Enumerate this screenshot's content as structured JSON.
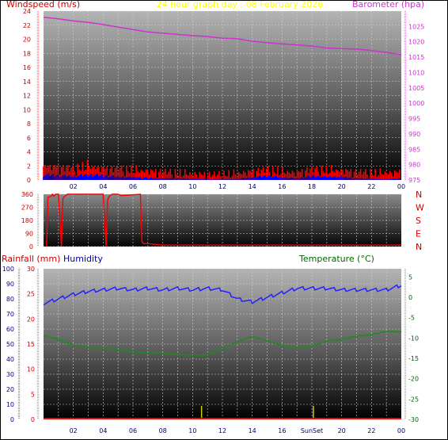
{
  "colors": {
    "wind": "#ff0000",
    "gust": "#0000ff",
    "baro": "#cc33cc",
    "title": "#ffff00",
    "dir": "#cc0000",
    "rain": "#cc0000",
    "humidity": "#000099",
    "temperature": "#006600",
    "sun": "#003399",
    "hum_line": "#2222ff",
    "temp_line": "#228822",
    "rain_line": "#ff0000",
    "sun_bar": "#cccc00"
  },
  "chart_data": [
    {
      "type": "line",
      "title": "24 hour graph day : 08 February 2026",
      "left_label": "Windspeed (m/s)",
      "right_label": "Barometer (hpa)",
      "ylim_left": [
        0,
        24
      ],
      "left_ticks": [
        "0",
        "2",
        "4",
        "6",
        "8",
        "10",
        "12",
        "14",
        "16",
        "18",
        "20",
        "22",
        "24"
      ],
      "ylim_right": [
        975,
        1030
      ],
      "right_ticks": [
        "975",
        "980",
        "985",
        "990",
        "995",
        "1000",
        "1005",
        "1010",
        "1015",
        "1020",
        "1025"
      ],
      "xlim": [
        0,
        24
      ],
      "x_ticks": [
        "02",
        "04",
        "06",
        "08",
        "10",
        "12",
        "14",
        "16",
        "18",
        "20",
        "22",
        "00"
      ],
      "series": [
        {
          "key": "barometer",
          "x": [
            0,
            1,
            2,
            3,
            4,
            5,
            6,
            7,
            8,
            9,
            10,
            11,
            12,
            13,
            14,
            15,
            16,
            17,
            18,
            19,
            20,
            21,
            22,
            23,
            24
          ],
          "values": [
            1028,
            1027.5,
            1026.8,
            1026.3,
            1025.6,
            1024.8,
            1024,
            1023.2,
            1022.8,
            1022.4,
            1022,
            1021.7,
            1021.2,
            1021,
            1020.2,
            1019.7,
            1019.3,
            1019,
            1018.6,
            1018,
            1017.8,
            1017.6,
            1017.2,
            1016.5,
            1015.8
          ]
        },
        {
          "key": "windspeed_max",
          "x": [
            0,
            1,
            2,
            3,
            4,
            5,
            6,
            7,
            8,
            9,
            10,
            11,
            12,
            13,
            14,
            15,
            16,
            17,
            18,
            19,
            20,
            21,
            22,
            23,
            24
          ],
          "values": [
            2.5,
            2.2,
            1.8,
            2.4,
            1.9,
            1.8,
            1.6,
            1.5,
            1.3,
            1.1,
            0.9,
            0.8,
            0.8,
            1.0,
            1.4,
            1.7,
            1.3,
            1.2,
            1.8,
            1.6,
            1.6,
            1.3,
            1.1,
            1.1,
            1.3
          ]
        },
        {
          "key": "windspeed_avg",
          "x": [
            0,
            1,
            2,
            3,
            4,
            5,
            6,
            7,
            8,
            9,
            10,
            11,
            12,
            13,
            14,
            15,
            16,
            17,
            18,
            19,
            20,
            21,
            22,
            23,
            24
          ],
          "values": [
            1.0,
            0.9,
            0.7,
            1.0,
            0.9,
            0.6,
            0.5,
            0.4,
            0.3,
            0.3,
            0.2,
            0.1,
            0.1,
            0.2,
            0.5,
            0.8,
            0.5,
            0.3,
            0.8,
            0.6,
            0.6,
            0.3,
            0.2,
            0.1,
            0.3
          ]
        }
      ]
    },
    {
      "type": "line",
      "ylim": [
        0,
        360
      ],
      "left_ticks": [
        "0",
        "90",
        "180",
        "270",
        "360"
      ],
      "right_ticks": [
        "N",
        "W",
        "S",
        "E",
        "N"
      ],
      "xlim": [
        0,
        24
      ],
      "series": [
        {
          "key": "wind_direction",
          "x": [
            0.2,
            0.3,
            0.5,
            0.6,
            0.7,
            0.8,
            1.0,
            1.2,
            1.3,
            1.4,
            1.6,
            4.0,
            4.2,
            4.3,
            4.4,
            4.6,
            5.0,
            5.2,
            6.5,
            6.6,
            6.7,
            7.0,
            8.0,
            12.0,
            16.0,
            20.0,
            24.0
          ],
          "values": [
            0,
            340,
            345,
            360,
            345,
            360,
            360,
            0,
            330,
            345,
            360,
            360,
            0,
            320,
            345,
            360,
            360,
            350,
            360,
            35,
            20,
            20,
            10,
            10,
            10,
            10,
            10
          ]
        }
      ]
    },
    {
      "type": "line",
      "left_label": "Rainfall (mm)",
      "humidity_label": "Humidity",
      "right_label": "Temperature (°C)",
      "ylim_rain": [
        0,
        30
      ],
      "rain_ticks": [
        "0",
        "5",
        "10",
        "15",
        "20",
        "25",
        "30"
      ],
      "ylim_humidity": [
        0,
        100
      ],
      "humidity_ticks": [
        "0",
        "10",
        "20",
        "30",
        "40",
        "50",
        "60",
        "70",
        "80",
        "90",
        "100"
      ],
      "ylim_temperature": [
        -30,
        7
      ],
      "temperature_ticks": [
        "5",
        "0",
        "-5",
        "-10",
        "-15",
        "-20",
        "-25",
        "-30"
      ],
      "xlim": [
        0,
        24
      ],
      "x_ticks": [
        "02",
        "04",
        "06",
        "SunSet",
        "20",
        "22",
        "00"
      ],
      "x_ticks_full": [
        "02",
        "04",
        "06",
        "08",
        "10",
        "12",
        "14",
        "16",
        "SunSet",
        "20",
        "22",
        "00"
      ],
      "series": [
        {
          "key": "humidity",
          "x": [
            0,
            1,
            2,
            3,
            4,
            5,
            6,
            7,
            8,
            9,
            10,
            11,
            12,
            13,
            14,
            15,
            16,
            17,
            18,
            19,
            20,
            21,
            22,
            23,
            24
          ],
          "values": [
            77,
            80,
            83,
            85,
            86,
            87,
            86,
            87,
            86,
            87,
            86,
            87,
            86,
            80,
            78,
            81,
            84,
            87,
            87,
            87,
            86,
            86,
            86,
            86,
            89
          ]
        },
        {
          "key": "temperature",
          "x": [
            0,
            1,
            2,
            3,
            4,
            5,
            6,
            7,
            8,
            9,
            10,
            11,
            12,
            13,
            14,
            15,
            16,
            17,
            18,
            19,
            20,
            21,
            22,
            23,
            24
          ],
          "values": [
            -9.5,
            -10.3,
            -11.8,
            -12.3,
            -12.6,
            -12.8,
            -13.5,
            -13.6,
            -13.8,
            -14.1,
            -14.2,
            -14.2,
            -12.6,
            -11,
            -9.6,
            -10.7,
            -11.8,
            -12.5,
            -11.9,
            -10.8,
            -10.3,
            -9.6,
            -9.2,
            -8.4,
            -8.5
          ]
        },
        {
          "key": "rainfall",
          "x": [
            0,
            24
          ],
          "values": [
            0,
            0
          ]
        }
      ],
      "sun_markers_hours": [
        10.6,
        18.1
      ]
    }
  ]
}
